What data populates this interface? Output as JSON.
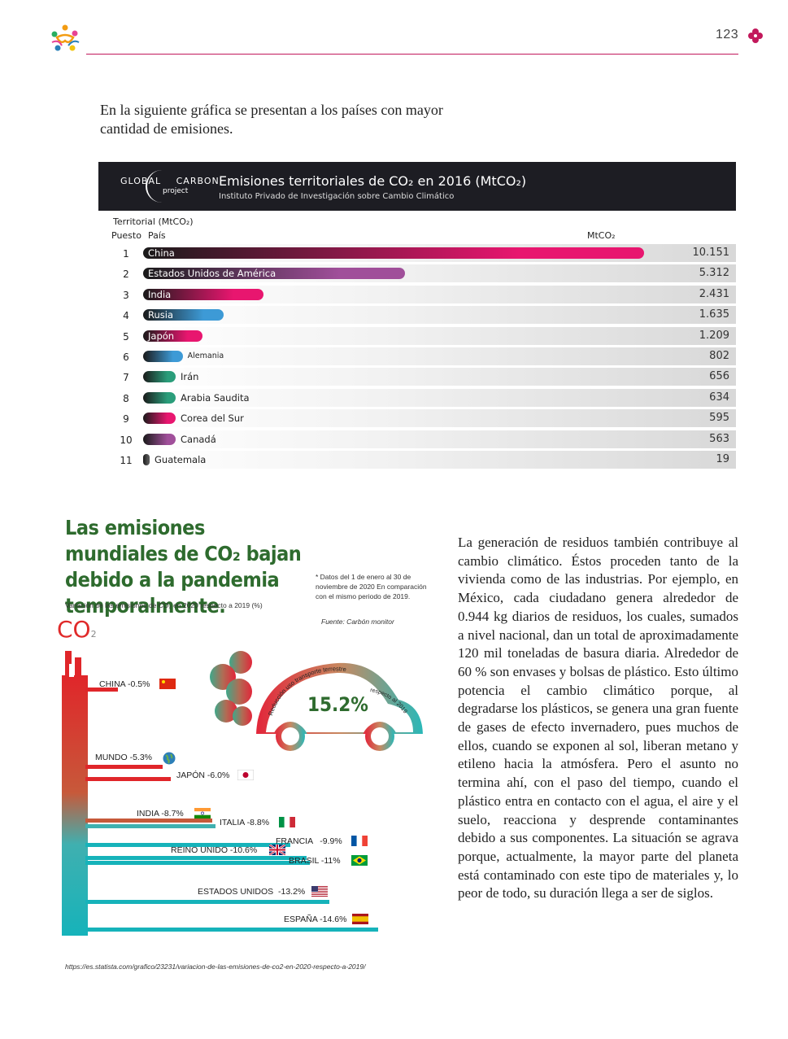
{
  "header": {
    "page_number": "123"
  },
  "intro": {
    "text": "En la siguiente gráfica se presentan a los países con mayor cantidad de emisiones."
  },
  "gcp_chart": {
    "logo_word1": "GLOBAL",
    "logo_word2": "CARBON",
    "logo_word3": "project",
    "title": "Emisiones territoriales de CO₂ en 2016 (MtCO₂)",
    "subtitle": "Instituto Privado de Investigación sobre Cambio Climático",
    "label_territorial": "Territorial (MtCO₂)",
    "label_puesto": "Puesto",
    "label_pais": "País",
    "label_unit": "MtCO₂"
  },
  "chart_data": {
    "type": "bar",
    "title": "Emisiones territoriales de CO₂ en 2016 (MtCO₂)",
    "categories": [
      "China",
      "Estados Unidos de América",
      "India",
      "Rusia",
      "Japón",
      "Alemania",
      "Irán",
      "Arabia Saudita",
      "Corea del Sur",
      "Canadá",
      "Guatemala"
    ],
    "ranks": [
      "1",
      "2",
      "3",
      "4",
      "5",
      "6",
      "7",
      "8",
      "9",
      "10",
      "11"
    ],
    "values": [
      10151,
      5312,
      2431,
      1635,
      1209,
      802,
      656,
      634,
      595,
      563,
      19
    ],
    "value_labels": [
      "10.151",
      "5.312",
      "2.431",
      "1.635",
      "1.209",
      "802",
      "656",
      "634",
      "595",
      "563",
      "19"
    ],
    "bar_colors": [
      "#e8166f",
      "#a04f9a",
      "#e8166f",
      "#3d9ad6",
      "#e8166f",
      "#3d9ad6",
      "#2a9d7a",
      "#2a9d7a",
      "#e8166f",
      "#a04f9a",
      "#555555"
    ],
    "xlim": [
      0,
      10151
    ]
  },
  "infographic": {
    "title": "Las emisiones mundiales de CO₂ bajan debido a la pandemia temporalmente.",
    "subtitle": "Variación de las emisiones de CO₂ en 2020 respecto a 2019 (%)",
    "note": "* Datos del 1 de enero al 30 de noviembre de 2020 En comparación con el mismo periodo de 2019.",
    "source": "Fuente: Carbón monitor",
    "co2": "CO",
    "co2_sub": "2",
    "car_arc_text": "Reducción uso transporte terrestre",
    "car_arc_text2": "respecto al 2019",
    "car_value": "15.2%",
    "items": [
      {
        "label": "CHINA -0.5%"
      },
      {
        "label": "MUNDO -5.3%"
      },
      {
        "label": "JAPÓN -6.0%"
      },
      {
        "label": "INDIA -8.7%"
      },
      {
        "label": "ITALIA -8.8%"
      },
      {
        "label": "FRANCIA   -9.9%"
      },
      {
        "label": "REINO UNIDO -10.6%"
      },
      {
        "label": "BRASIL -11%"
      },
      {
        "label": "ESTADOS UNIDOS  -13.2%"
      },
      {
        "label": "ESPAÑA -14.6%"
      }
    ]
  },
  "body_text": "La generación de residuos también contribuye al cambio climático. Éstos proceden tanto de la vivienda como de las industrias. Por ejemplo, en México, cada ciudadano genera alrededor de 0.944 kg diarios de residuos, los cuales, sumados a nivel nacional, dan un total de aproximadamente 120 mil toneladas de basura diaria. Alrededor de 60 % son envases y bolsas de plástico. Esto último potencia el cambio climático porque, al degradarse los plásticos, se genera una gran fuente de gases de efecto invernadero, pues muchos de ellos, cuando se exponen al sol, liberan metano y etileno hacia la atmósfera. Pero el asunto no termina ahí, con el paso del tiempo, cuando el plástico entra en contacto con el agua, el aire y el suelo, reacciona y desprende contaminantes debido a sus componentes. La situación se agrava porque, actualmente, la mayor parte del planeta está contaminado con este tipo de materiales y, lo peor de todo, su duración llega a ser de siglos.",
  "url": "https://es.statista.com/grafico/23231/variacion-de-las-emisiones-de-co2-en-2020-respecto-a-2019/"
}
